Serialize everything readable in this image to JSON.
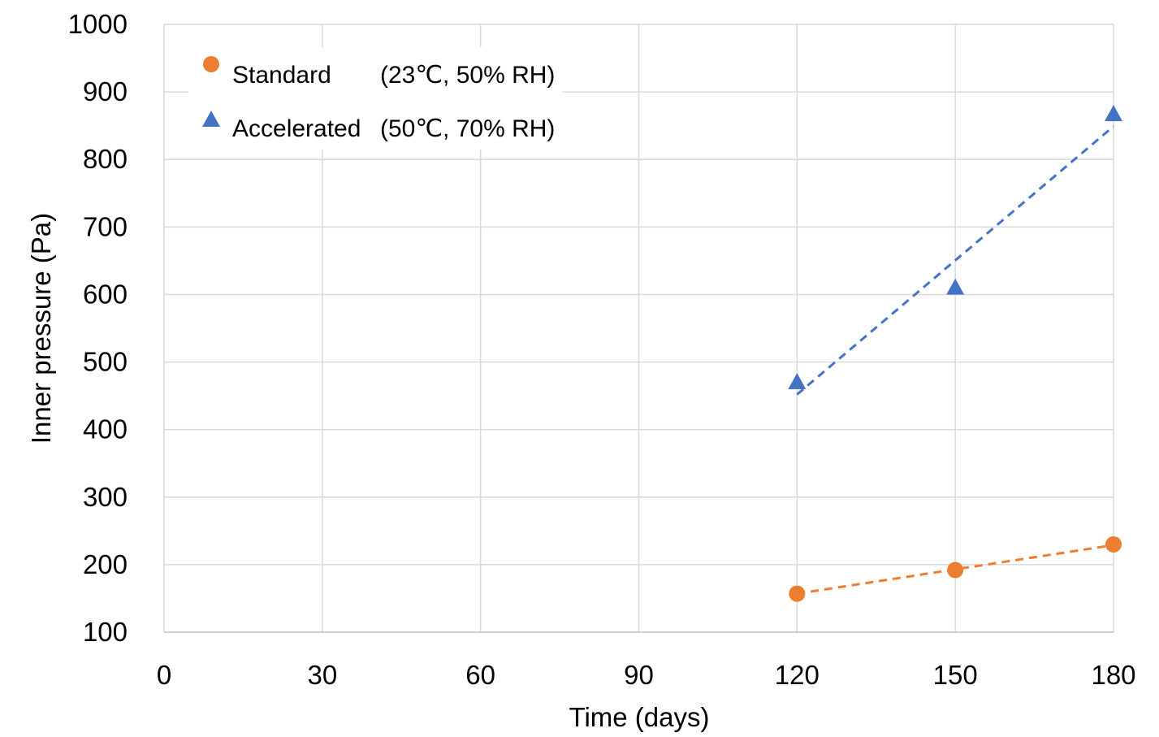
{
  "chart_data": {
    "type": "scatter",
    "title": "",
    "xlabel": "Time (days)",
    "ylabel": "Inner pressure (Pa)",
    "xlim": [
      0,
      180
    ],
    "ylim": [
      100,
      1000
    ],
    "xticks": [
      0,
      30,
      60,
      90,
      120,
      150,
      180
    ],
    "yticks": [
      100,
      200,
      300,
      400,
      500,
      600,
      700,
      800,
      900,
      1000
    ],
    "grid": true,
    "legend_position": "top-left",
    "series": [
      {
        "name": "Standard",
        "condition": "(23℃, 50% RH)",
        "marker": "circle",
        "color": "#ED7D31",
        "x": [
          120,
          150,
          180
        ],
        "y": [
          157,
          192,
          230
        ],
        "trendline": {
          "type": "linear",
          "style": "dashed",
          "x": [
            120,
            180
          ],
          "y": [
            157,
            229
          ]
        }
      },
      {
        "name": "Accelerated",
        "condition": "(50℃, 70% RH)",
        "marker": "triangle",
        "color": "#4472C4",
        "x": [
          120,
          150,
          180
        ],
        "y": [
          470,
          610,
          867
        ],
        "trendline": {
          "type": "linear",
          "style": "dashed",
          "x": [
            120,
            180
          ],
          "y": [
            452,
            849
          ]
        }
      }
    ]
  }
}
